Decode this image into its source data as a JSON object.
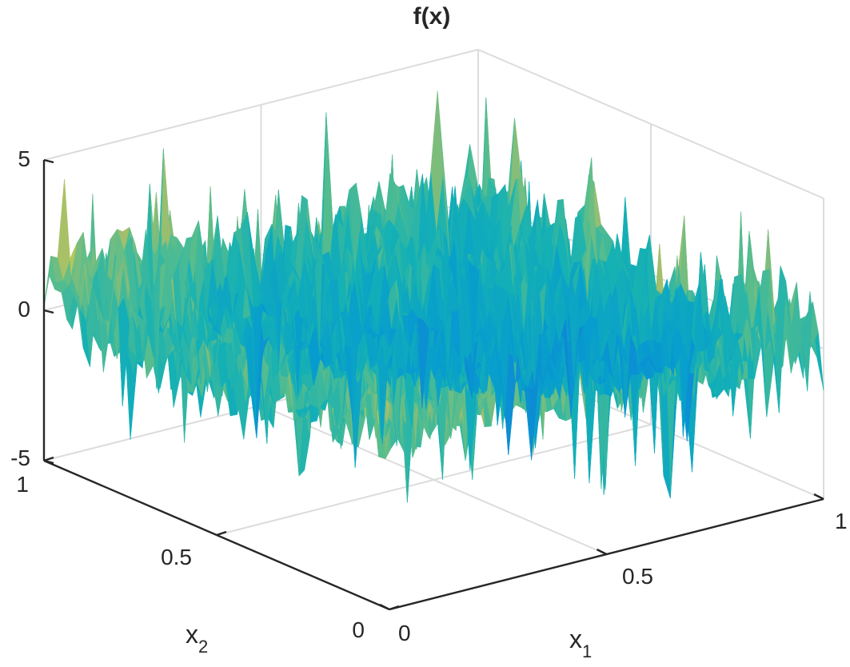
{
  "chart_data": {
    "type": "surface",
    "title": "f(x)",
    "xlabel": "x",
    "xlabel_sub": "1",
    "ylabel": "x",
    "ylabel_sub": "2",
    "zlabel": "",
    "xlim": [
      0,
      1
    ],
    "ylim": [
      0,
      1
    ],
    "zlim": [
      -5,
      5
    ],
    "x_ticks": [
      "0",
      "0.5",
      "1"
    ],
    "y_ticks": [
      "0",
      "0.5",
      "1"
    ],
    "z_ticks": [
      "-5",
      "0",
      "5"
    ],
    "colormap": "parula",
    "grid": true,
    "box": "3d",
    "value_range_approx": [
      -5,
      5
    ]
  }
}
